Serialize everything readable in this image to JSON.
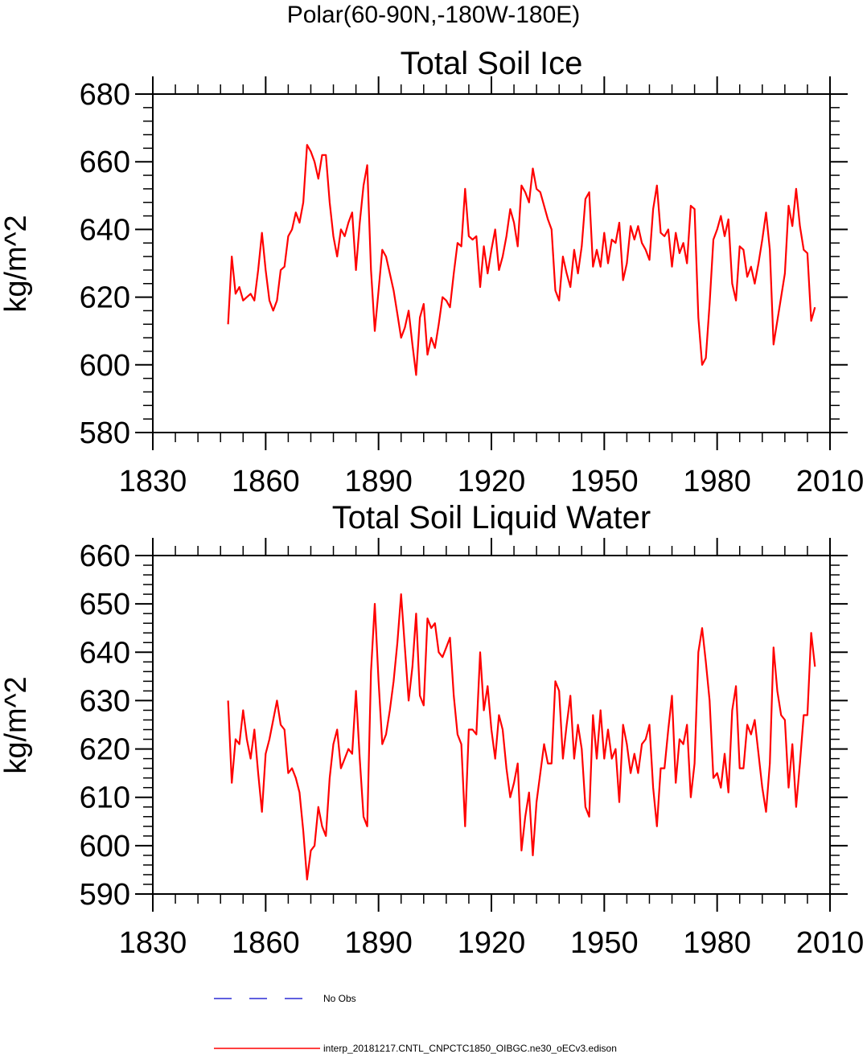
{
  "supertitle": "Polar(60-90N,-180W-180E)",
  "colors": {
    "series": "#ff0000",
    "no_obs": "#0000cc",
    "axis": "#000000"
  },
  "legend": {
    "no_obs_label": "No Obs",
    "series_label": "interp_20181217.CNTL_CNPCTC1850_OIBGC.ne30_oECv3.edison"
  },
  "chart_data": [
    {
      "type": "line",
      "title": "Total Soil Ice",
      "xlabel": "",
      "ylabel": "kg/m^2",
      "xlim": [
        1830,
        2010
      ],
      "ylim": [
        580,
        680
      ],
      "xticks": [
        1830,
        1860,
        1890,
        1920,
        1950,
        1980,
        2010
      ],
      "yticks": [
        580,
        600,
        620,
        640,
        660,
        680
      ],
      "series": [
        {
          "name": "interp_20181217.CNTL_CNPCTC1850_OIBGC.ne30_oECv3.edison",
          "x_start": 1850,
          "x_step": 1,
          "values": [
            612,
            632,
            621,
            623,
            619,
            620,
            621,
            619,
            628,
            639,
            628,
            619,
            616,
            619,
            628,
            629,
            638,
            640,
            645,
            642,
            648,
            665,
            663,
            660,
            655,
            662,
            662,
            648,
            638,
            632,
            640,
            638,
            642,
            645,
            628,
            642,
            653,
            659,
            628,
            610,
            622,
            634,
            632,
            627,
            622,
            615,
            608,
            611,
            616,
            606,
            597,
            614,
            618,
            603,
            608,
            605,
            612,
            620,
            619,
            617,
            627,
            636,
            635,
            652,
            638,
            637,
            638,
            623,
            635,
            627,
            634,
            640,
            628,
            632,
            638,
            646,
            642,
            635,
            653,
            651,
            648,
            658,
            652,
            651,
            647,
            643,
            640,
            622,
            619,
            632,
            627,
            623,
            634,
            627,
            635,
            649,
            651,
            629,
            634,
            629,
            639,
            630,
            637,
            636,
            642,
            625,
            630,
            641,
            637,
            641,
            636,
            634,
            631,
            646,
            653,
            639,
            638,
            640,
            629,
            639,
            633,
            636,
            630,
            647,
            646,
            614,
            600,
            602,
            618,
            637,
            640,
            644,
            638,
            643,
            624,
            619,
            635,
            634,
            626,
            629,
            624,
            630,
            637,
            645,
            634,
            606,
            613,
            620,
            627,
            647,
            641,
            652,
            641,
            634,
            633,
            613,
            617
          ]
        }
      ]
    },
    {
      "type": "line",
      "title": "Total Soil Liquid Water",
      "xlabel": "",
      "ylabel": "kg/m^2",
      "xlim": [
        1830,
        2010
      ],
      "ylim": [
        590,
        660
      ],
      "xticks": [
        1830,
        1860,
        1890,
        1920,
        1950,
        1980,
        2010
      ],
      "yticks": [
        590,
        600,
        610,
        620,
        630,
        640,
        650,
        660
      ],
      "series": [
        {
          "name": "interp_20181217.CNTL_CNPCTC1850_OIBGC.ne30_oECv3.edison",
          "x_start": 1850,
          "x_step": 1,
          "values": [
            630,
            613,
            622,
            621,
            628,
            622,
            618,
            624,
            615,
            607,
            619,
            622,
            626,
            630,
            625,
            624,
            615,
            616,
            614,
            611,
            603,
            593,
            599,
            600,
            608,
            604,
            602,
            614,
            621,
            624,
            616,
            618,
            620,
            619,
            632,
            618,
            606,
            604,
            636,
            650,
            634,
            621,
            623,
            628,
            634,
            642,
            652,
            641,
            630,
            637,
            648,
            631,
            629,
            647,
            645,
            646,
            640,
            639,
            641,
            643,
            631,
            623,
            621,
            604,
            624,
            624,
            623,
            640,
            628,
            633,
            624,
            618,
            627,
            624,
            616,
            610,
            613,
            617,
            599,
            606,
            611,
            598,
            609,
            615,
            621,
            617,
            617,
            634,
            632,
            618,
            625,
            631,
            618,
            625,
            620,
            608,
            606,
            627,
            618,
            628,
            618,
            624,
            618,
            620,
            609,
            625,
            621,
            615,
            619,
            615,
            621,
            622,
            625,
            612,
            604,
            616,
            616,
            624,
            631,
            613,
            622,
            621,
            625,
            610,
            617,
            640,
            645,
            638,
            630,
            614,
            615,
            612,
            619,
            611,
            628,
            633,
            616,
            616,
            625,
            623,
            626,
            619,
            612,
            607,
            617,
            641,
            632,
            627,
            626,
            612,
            621,
            608,
            617,
            627,
            627,
            644,
            637
          ]
        }
      ]
    }
  ]
}
